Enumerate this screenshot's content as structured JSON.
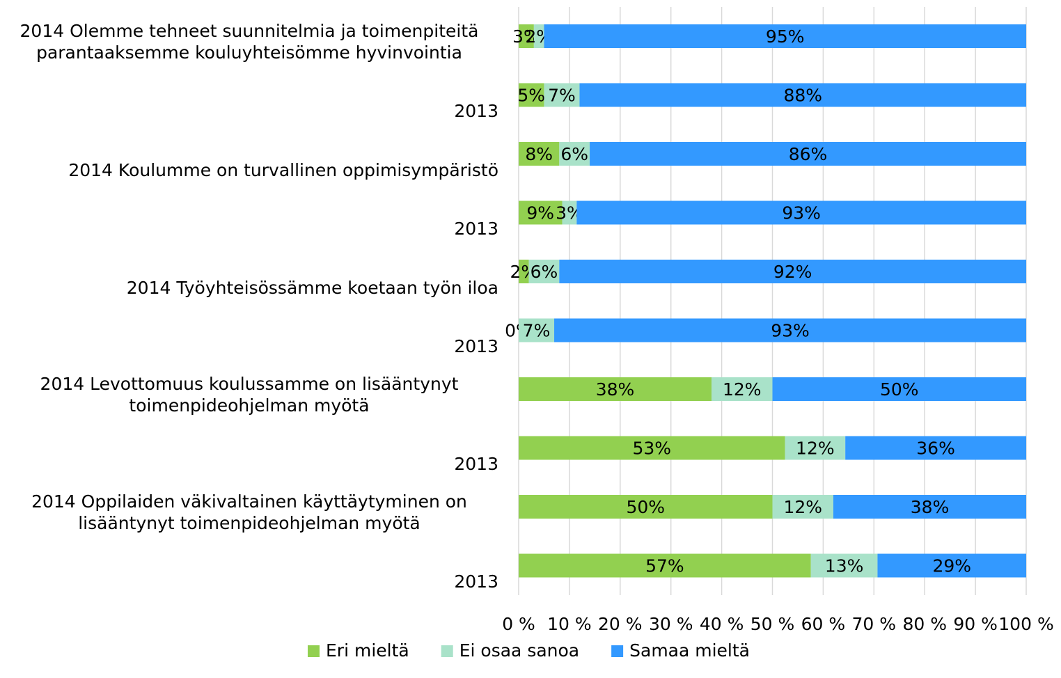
{
  "chart_data": {
    "type": "bar",
    "orientation": "horizontal",
    "stacking": "percent",
    "categories": [
      "2014 Olemme tehneet suunnitelmia ja toimenpiteitä parantaaksemme kouluyhteisömme hyvinvointia",
      "2013",
      "2014 Koulumme on turvallinen oppimisympäristö",
      "2013",
      "2014 Työyhteisössämme koetaan työn iloa",
      "2013",
      "2014 Levottomuus koulussamme on lisääntynyt toimenpideohjelman myötä",
      "2013",
      "2014 Oppilaiden väkivaltainen käyttäytyminen on lisääntynyt toimenpideohjelman myötä",
      "2013"
    ],
    "series": [
      {
        "name": "Eri mieltä",
        "color": "#92d050",
        "values": [
          3,
          5,
          8,
          9,
          2,
          0,
          38,
          53,
          50,
          57
        ],
        "value_labels": [
          "3%",
          "5%",
          "8%",
          "9%",
          "2%",
          "0%",
          "38%",
          "53%",
          "50%",
          "57%"
        ]
      },
      {
        "name": "Ei osaa sanoa",
        "color": "#a9e2c9",
        "values": [
          2,
          7,
          6,
          3,
          6,
          7,
          12,
          12,
          12,
          13
        ],
        "value_labels": [
          "2%",
          "7%",
          "6%",
          "3%",
          "6%",
          "7%",
          "12%",
          "12%",
          "12%",
          "13%"
        ]
      },
      {
        "name": "Samaa mieltä",
        "color": "#3399ff",
        "values": [
          95,
          88,
          86,
          93,
          92,
          93,
          50,
          36,
          38,
          29
        ],
        "value_labels": [
          "95%",
          "88%",
          "86%",
          "93%",
          "92%",
          "93%",
          "50%",
          "36%",
          "38%",
          "29%"
        ]
      }
    ],
    "xlim": [
      0,
      100
    ],
    "xticks": [
      {
        "value": 0,
        "label": "0 %"
      },
      {
        "value": 10,
        "label": "10 %"
      },
      {
        "value": 20,
        "label": "20 %"
      },
      {
        "value": 30,
        "label": "30 %"
      },
      {
        "value": 40,
        "label": "40 %"
      },
      {
        "value": 50,
        "label": "50 %"
      },
      {
        "value": 60,
        "label": "60 %"
      },
      {
        "value": 70,
        "label": "70 %"
      },
      {
        "value": 80,
        "label": "80 %"
      },
      {
        "value": 90,
        "label": "90 %"
      },
      {
        "value": 100,
        "label": "100 %"
      }
    ],
    "grid": true,
    "legend": "bottom"
  }
}
